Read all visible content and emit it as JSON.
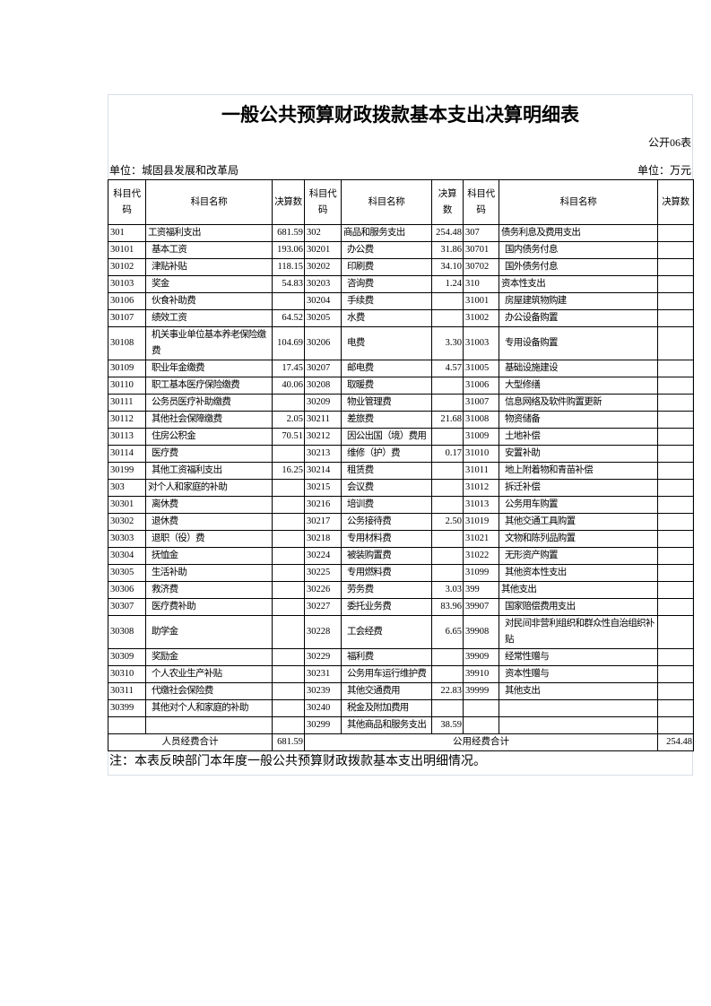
{
  "title": "一般公共预算财政拨款基本支出决算明细表",
  "table_no": "公开06表",
  "unit_left": "单位：城固县发展和改革局",
  "unit_right": "单位：万元",
  "headers": [
    "科目代码",
    "科目名称",
    "决算数",
    "科目代码",
    "科目名称",
    "决算数",
    "科目代码",
    "科目名称",
    "决算数"
  ],
  "rows": [
    [
      [
        "301",
        "工资福利支出",
        "681.59"
      ],
      [
        "302",
        "商品和服务支出",
        "254.48"
      ],
      [
        "307",
        "债务利息及费用支出",
        ""
      ]
    ],
    [
      [
        "30101",
        "基本工资",
        "193.06"
      ],
      [
        "30201",
        "办公费",
        "31.86"
      ],
      [
        "30701",
        "国内债务付息",
        ""
      ]
    ],
    [
      [
        "30102",
        "津贴补贴",
        "118.15"
      ],
      [
        "30202",
        "印刷费",
        "34.10"
      ],
      [
        "30702",
        "国外债务付息",
        ""
      ]
    ],
    [
      [
        "30103",
        "奖金",
        "54.83"
      ],
      [
        "30203",
        "咨询费",
        "1.24"
      ],
      [
        "310",
        "资本性支出",
        ""
      ]
    ],
    [
      [
        "30106",
        "伙食补助费",
        ""
      ],
      [
        "30204",
        "手续费",
        ""
      ],
      [
        "31001",
        "房屋建筑物购建",
        ""
      ]
    ],
    [
      [
        "30107",
        "绩效工资",
        "64.52"
      ],
      [
        "30205",
        "水费",
        ""
      ],
      [
        "31002",
        "办公设备购置",
        ""
      ]
    ],
    [
      [
        "30108",
        "机关事业单位基本养老保险缴费",
        "104.69"
      ],
      [
        "30206",
        "电费",
        "3.30"
      ],
      [
        "31003",
        "专用设备购置",
        ""
      ]
    ],
    [
      [
        "30109",
        "职业年金缴费",
        "17.45"
      ],
      [
        "30207",
        "邮电费",
        "4.57"
      ],
      [
        "31005",
        "基础设施建设",
        ""
      ]
    ],
    [
      [
        "30110",
        "职工基本医疗保险缴费",
        "40.06"
      ],
      [
        "30208",
        "取暖费",
        ""
      ],
      [
        "31006",
        "大型修缮",
        ""
      ]
    ],
    [
      [
        "30111",
        "公务员医疗补助缴费",
        ""
      ],
      [
        "30209",
        "物业管理费",
        ""
      ],
      [
        "31007",
        "信息网络及软件购置更新",
        ""
      ]
    ],
    [
      [
        "30112",
        "其他社会保障缴费",
        "2.05"
      ],
      [
        "30211",
        "差旅费",
        "21.68"
      ],
      [
        "31008",
        "物资储备",
        ""
      ]
    ],
    [
      [
        "30113",
        "住房公积金",
        "70.51"
      ],
      [
        "30212",
        "因公出国（境）费用",
        ""
      ],
      [
        "31009",
        "土地补偿",
        ""
      ]
    ],
    [
      [
        "30114",
        "医疗费",
        ""
      ],
      [
        "30213",
        "维修（护）费",
        "0.17"
      ],
      [
        "31010",
        "安置补助",
        ""
      ]
    ],
    [
      [
        "30199",
        "其他工资福利支出",
        "16.25"
      ],
      [
        "30214",
        "租赁费",
        ""
      ],
      [
        "31011",
        "地上附着物和青苗补偿",
        ""
      ]
    ],
    [
      [
        "303",
        "对个人和家庭的补助",
        ""
      ],
      [
        "30215",
        "会议费",
        ""
      ],
      [
        "31012",
        "拆迁补偿",
        ""
      ]
    ],
    [
      [
        "30301",
        "离休费",
        ""
      ],
      [
        "30216",
        "培训费",
        ""
      ],
      [
        "31013",
        "公务用车购置",
        ""
      ]
    ],
    [
      [
        "30302",
        "退休费",
        ""
      ],
      [
        "30217",
        "公务接待费",
        "2.50"
      ],
      [
        "31019",
        "其他交通工具购置",
        ""
      ]
    ],
    [
      [
        "30303",
        "退职（役）费",
        ""
      ],
      [
        "30218",
        "专用材料费",
        ""
      ],
      [
        "31021",
        "文物和陈列品购置",
        ""
      ]
    ],
    [
      [
        "30304",
        "抚恤金",
        ""
      ],
      [
        "30224",
        "被装购置费",
        ""
      ],
      [
        "31022",
        "无形资产购置",
        ""
      ]
    ],
    [
      [
        "30305",
        "生活补助",
        ""
      ],
      [
        "30225",
        "专用燃料费",
        ""
      ],
      [
        "31099",
        "其他资本性支出",
        ""
      ]
    ],
    [
      [
        "30306",
        "救济费",
        ""
      ],
      [
        "30226",
        "劳务费",
        "3.03"
      ],
      [
        "399",
        "其他支出",
        ""
      ]
    ],
    [
      [
        "30307",
        "医疗费补助",
        ""
      ],
      [
        "30227",
        "委托业务费",
        "83.96"
      ],
      [
        "39907",
        "国家赔偿费用支出",
        ""
      ]
    ],
    [
      [
        "30308",
        "助学金",
        ""
      ],
      [
        "30228",
        "工会经费",
        "6.65"
      ],
      [
        "39908",
        "对民间非营利组织和群众性自治组织补贴",
        ""
      ]
    ],
    [
      [
        "30309",
        "奖励金",
        ""
      ],
      [
        "30229",
        "福利费",
        ""
      ],
      [
        "39909",
        "经常性赠与",
        ""
      ]
    ],
    [
      [
        "30310",
        "个人农业生产补贴",
        ""
      ],
      [
        "30231",
        "公务用车运行维护费",
        ""
      ],
      [
        "39910",
        "资本性赠与",
        ""
      ]
    ],
    [
      [
        "30311",
        "代缴社会保险费",
        ""
      ],
      [
        "30239",
        "其他交通费用",
        "22.83"
      ],
      [
        "39999",
        "其他支出",
        ""
      ]
    ],
    [
      [
        "30399",
        "其他对个人和家庭的补助",
        ""
      ],
      [
        "30240",
        "税金及附加费用",
        ""
      ],
      [
        "",
        "",
        ""
      ]
    ],
    [
      [
        "",
        "",
        ""
      ],
      [
        "30299",
        "其他商品和服务支出",
        "38.59"
      ],
      [
        "",
        "",
        ""
      ]
    ]
  ],
  "totals": {
    "personnel_label": "人员经费合计",
    "personnel_value": "681.59",
    "public_label": "公用经费合计",
    "public_value": "254.48"
  },
  "note": "注：本表反映部门本年度一般公共预算财政拨款基本支出明细情况。"
}
